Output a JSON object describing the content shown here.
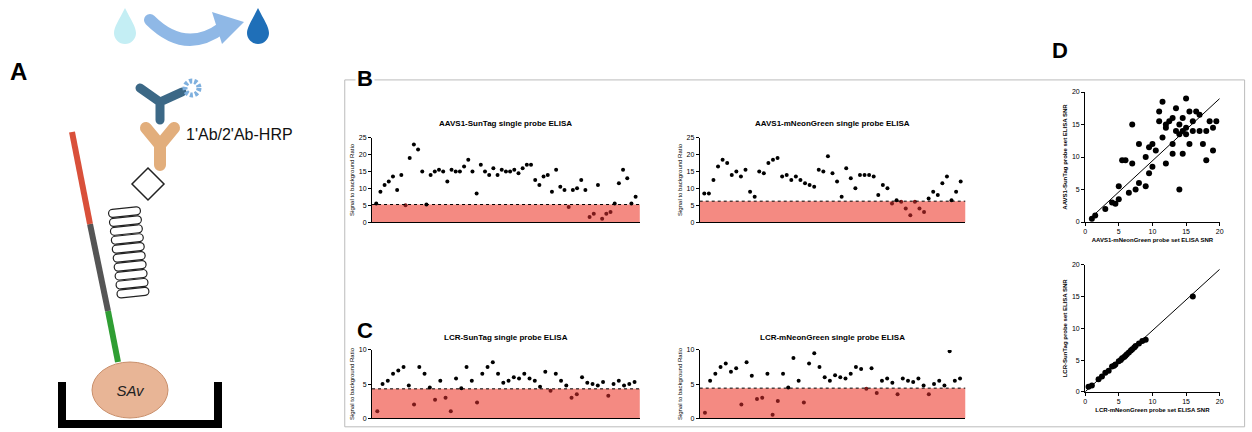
{
  "diagram": {
    "letter": "A",
    "antibody_label": "1'Ab/2'Ab-HRP",
    "streptavidin_label": "SAv"
  },
  "chart_data": [
    {
      "type": "scatter",
      "panel": "B",
      "title": "AAVS1-SunTag single probe ELISA",
      "ylabel": "Signal to background Ratio",
      "categories": [
        null,
        null,
        null,
        null,
        null,
        null,
        null,
        null,
        null,
        null,
        null,
        null,
        null,
        null,
        null,
        null,
        null,
        null,
        null,
        null,
        null,
        null,
        null,
        null,
        null,
        null,
        null,
        null,
        null,
        null,
        null,
        null,
        null,
        null,
        null,
        null,
        null,
        null,
        null,
        null,
        null,
        null,
        null,
        null,
        null,
        null,
        null,
        null,
        null,
        null,
        null,
        null,
        null,
        null,
        null,
        null,
        null,
        null,
        null,
        null,
        null,
        null,
        null
      ],
      "values": [
        5.5,
        9,
        11,
        12,
        13.5,
        9.5,
        14,
        5,
        19,
        23,
        21.5,
        15,
        5.2,
        14,
        15,
        15.5,
        15,
        12,
        15.5,
        15,
        15,
        16.5,
        18.5,
        15,
        8.5,
        17,
        15,
        14,
        16,
        14,
        15.5,
        15,
        15,
        15.5,
        14.5,
        16,
        17,
        17,
        12.5,
        11,
        13.5,
        14,
        9,
        15.5,
        10.5,
        9.5,
        4.5,
        9.5,
        10,
        12.5,
        9.5,
        1.5,
        2.5,
        11,
        1,
        2.5,
        3,
        5.5,
        11.5,
        15.5,
        13,
        5.5,
        7.5
      ],
      "threshold": 5.2,
      "color": "#000000",
      "ylim": [
        0,
        25
      ],
      "yticks": [
        0,
        5,
        10,
        15,
        20,
        25
      ],
      "grid": false,
      "tick_labels": "y"
    },
    {
      "type": "scatter",
      "panel": "B",
      "title": "AAVS1-mNeonGreen single probe ELISA",
      "ylabel": "Signal to background Ratio",
      "categories": [
        null,
        null,
        null,
        null,
        null,
        null,
        null,
        null,
        null,
        null,
        null,
        null,
        null,
        null,
        null,
        null,
        null,
        null,
        null,
        null,
        null,
        null,
        null,
        null,
        null,
        null,
        null,
        null,
        null,
        null,
        null,
        null,
        null,
        null,
        null,
        null,
        null,
        null,
        null,
        null,
        null,
        null,
        null,
        null,
        null,
        null,
        null,
        null,
        null,
        null,
        null,
        null,
        null,
        null,
        null,
        null,
        null
      ],
      "values": [
        8.5,
        8.5,
        12.5,
        16.5,
        18.5,
        17.5,
        14,
        15,
        13.5,
        15.5,
        9,
        7.5,
        15,
        14.5,
        17.5,
        18.5,
        19,
        13.5,
        14,
        12.5,
        13.5,
        12.5,
        11.5,
        11,
        10.5,
        15.5,
        15,
        19.5,
        14.5,
        12,
        7.5,
        16,
        13,
        10,
        14,
        14,
        14,
        13.5,
        8,
        11,
        10,
        5.5,
        6.5,
        6,
        4,
        2,
        6,
        4,
        3,
        7,
        9,
        8,
        11.5,
        13.5,
        6.5,
        9,
        12
      ],
      "threshold": 6.2,
      "color": "#000000",
      "ylim": [
        0,
        25
      ],
      "yticks": [
        0,
        5,
        10,
        15,
        20,
        25
      ],
      "grid": false,
      "tick_labels": "y"
    },
    {
      "type": "scatter",
      "panel": "C",
      "title": "LCR-SunTag single probe ELISA",
      "ylabel": "Signal to background Ratio",
      "categories": [
        null,
        null,
        null,
        null,
        null,
        null,
        null,
        null,
        null,
        null,
        null,
        null,
        null,
        null,
        null,
        null,
        null,
        null,
        null,
        null,
        null,
        null,
        null,
        null,
        null,
        null,
        null,
        null,
        null,
        null,
        null,
        null,
        null,
        null,
        null,
        null,
        null,
        null,
        null,
        null,
        null,
        null,
        null,
        null,
        null,
        null,
        null,
        null,
        null,
        null
      ],
      "values": [
        1,
        5,
        5.5,
        6.5,
        7,
        7.5,
        4.8,
        2,
        7.5,
        6.5,
        4.5,
        2.7,
        5.5,
        3,
        1,
        5.8,
        4.4,
        7.5,
        5.5,
        2.3,
        6.5,
        7.5,
        8.2,
        6.5,
        5.2,
        5.5,
        6,
        5.8,
        6.5,
        5.8,
        5.5,
        4.6,
        6.8,
        4,
        6.5,
        5.5,
        4.8,
        3,
        3.5,
        6,
        5.2,
        5,
        4.8,
        5.3,
        3.3,
        5,
        5.5,
        4.8,
        5,
        5.3
      ],
      "threshold": 4.3,
      "color": "#000000",
      "ylim": [
        0,
        10
      ],
      "yticks": [
        0,
        5,
        10
      ],
      "grid": false,
      "tick_labels": "y"
    },
    {
      "type": "scatter",
      "panel": "C",
      "title": "LCR-mNeonGreen single probe ELISA",
      "ylabel": "Signal to background Ratio",
      "categories": [
        null,
        null,
        null,
        null,
        null,
        null,
        null,
        null,
        null,
        null,
        null,
        null,
        null,
        null,
        null,
        null,
        null,
        null,
        null,
        null,
        null,
        null,
        null,
        null,
        null,
        null,
        null,
        null,
        null,
        null,
        null,
        null,
        null,
        null,
        null,
        null,
        null,
        null,
        null,
        null,
        null,
        null,
        null,
        null,
        null,
        null,
        null,
        null,
        null,
        null
      ],
      "values": [
        0.8,
        5.5,
        6.5,
        7.5,
        8,
        6.8,
        7.3,
        2,
        8.2,
        6.2,
        2.8,
        3,
        6.5,
        0.5,
        2.5,
        6.5,
        4.5,
        8.8,
        5.5,
        2.3,
        8,
        9.5,
        7.5,
        6,
        5.5,
        6.3,
        6,
        5.8,
        6.5,
        7.5,
        7.2,
        4.3,
        7.3,
        3.7,
        5.5,
        5.8,
        5.2,
        3.5,
        5.8,
        5.5,
        5.3,
        5.8,
        4.8,
        3.5,
        5,
        5.5,
        4.8,
        9.8,
        5.5,
        5.8
      ],
      "threshold": 4.4,
      "color": "#000000",
      "ylim": [
        0,
        10
      ],
      "yticks": [
        0,
        5,
        10
      ],
      "grid": false,
      "tick_labels": "y"
    },
    {
      "type": "scatter",
      "panel": "D",
      "xlabel": "AAVS1-mNeonGreen probe set ELISA SNR",
      "ylabel": "AAVS1-SunTag probe set ELISA SNR",
      "x": [
        1,
        1.5,
        3,
        4,
        4.5,
        5,
        5,
        5.5,
        6,
        6.5,
        7,
        7,
        7.5,
        8,
        8,
        9,
        9,
        9.5,
        9.5,
        10,
        10,
        10.5,
        11,
        11,
        11.5,
        12,
        12,
        12.5,
        13,
        13,
        13,
        13.5,
        13.5,
        14,
        14,
        14,
        14.5,
        14.5,
        15,
        15,
        15,
        15.5,
        15.5,
        16,
        16,
        17,
        17,
        17.5,
        18,
        18,
        18.5,
        19,
        19.5,
        19,
        12,
        14.5,
        16.5,
        11.5
      ],
      "values": [
        0.5,
        1,
        2,
        3,
        2.8,
        3.5,
        5.5,
        9.5,
        9.5,
        4.5,
        15,
        9,
        5,
        6,
        12,
        10,
        5.5,
        11.5,
        7.5,
        8.5,
        12,
        11,
        15.5,
        17,
        18.5,
        14.5,
        9,
        15.5,
        16,
        12,
        10.5,
        14,
        17.5,
        15,
        13.5,
        5,
        14,
        16,
        19,
        14.5,
        13.5,
        12,
        17,
        15.5,
        14,
        14,
        16.5,
        12,
        9.5,
        14,
        15.5,
        14.5,
        15.5,
        11,
        15,
        10.5,
        17,
        13
      ],
      "fit_line": {
        "x": [
          1,
          20
        ],
        "y": [
          0.8,
          19
        ]
      },
      "color": "#000000",
      "xlim": [
        0,
        20
      ],
      "ylim": [
        0,
        20
      ],
      "xticks": [
        0,
        5,
        10,
        15,
        20
      ],
      "yticks": [
        0,
        5,
        10,
        15,
        20
      ],
      "grid": false
    },
    {
      "type": "scatter",
      "panel": "D",
      "xlabel": "LCR-mNeonGreen probe set ELISA SNR",
      "ylabel": "LCR-SunTag probe set ELISA SNR",
      "x": [
        0.5,
        1,
        2,
        2.5,
        3,
        3.5,
        4,
        4.3,
        4.5,
        5,
        5.3,
        5.5,
        5.8,
        6,
        6.2,
        6.5,
        6.8,
        7,
        7.3,
        7.5,
        8,
        8.5,
        9,
        16
      ],
      "values": [
        0.8,
        1,
        2,
        2.4,
        3,
        3.3,
        4,
        4.1,
        4.3,
        4.8,
        5,
        5.3,
        5.5,
        5.7,
        5.9,
        6.2,
        6.5,
        6.7,
        7,
        7.2,
        7.6,
        8,
        8.2,
        15
      ],
      "fit_line": {
        "x": [
          0,
          20
        ],
        "y": [
          0,
          19.3
        ]
      },
      "color": "#000000",
      "xlim": [
        0,
        20
      ],
      "ylim": [
        0,
        20
      ],
      "xticks": [
        0,
        5,
        10,
        15,
        20
      ],
      "yticks": [
        0,
        5,
        10,
        15,
        20
      ],
      "grid": false
    }
  ]
}
